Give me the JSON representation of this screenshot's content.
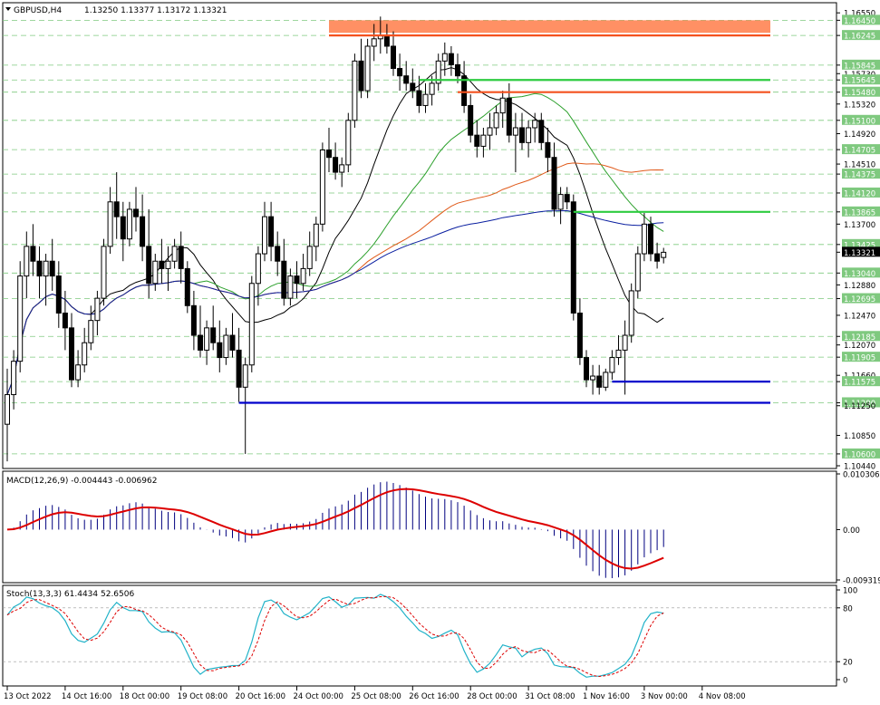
{
  "header": {
    "symbol": "GBPUSD,H4",
    "ohlc": "1.13250 1.13377 1.13172 1.13321"
  },
  "colors": {
    "bull": "#000000",
    "bear": "#000000",
    "grid": "#7fc97f",
    "ma_fast": "#000000",
    "ma_mid": "#2ca02c",
    "ma_slow": "#e05a1a",
    "ma_long": "#0a1fa0",
    "level_red": "#f4511e",
    "level_green": "#2ecc40",
    "level_blue": "#0000cc",
    "resist_zone": "#ff8a5c",
    "macd_hist": "#00007f",
    "macd_signal": "#dd0000",
    "stoch_main": "#20b2c8",
    "stoch_signal": "#dd0000"
  },
  "price_axis": {
    "labels": [
      {
        "v": 1.1655,
        "t": "1.16550",
        "hl": false
      },
      {
        "v": 1.1645,
        "t": "1.16450",
        "hl": true
      },
      {
        "v": 1.16245,
        "t": "1.16245",
        "hl": true
      },
      {
        "v": 1.15845,
        "t": "1.15845",
        "hl": true
      },
      {
        "v": 1.1573,
        "t": "1.15730",
        "hl": false
      },
      {
        "v": 1.15645,
        "t": "1.15645",
        "hl": true
      },
      {
        "v": 1.1548,
        "t": "1.15480",
        "hl": true
      },
      {
        "v": 1.1532,
        "t": "1.15320",
        "hl": false
      },
      {
        "v": 1.151,
        "t": "1.15100",
        "hl": true
      },
      {
        "v": 1.1492,
        "t": "1.14920",
        "hl": false
      },
      {
        "v": 1.14705,
        "t": "1.14705",
        "hl": true
      },
      {
        "v": 1.1451,
        "t": "1.14510",
        "hl": false
      },
      {
        "v": 1.14375,
        "t": "1.14375",
        "hl": true
      },
      {
        "v": 1.1412,
        "t": "1.14120",
        "hl": true
      },
      {
        "v": 1.13865,
        "t": "1.13865",
        "hl": true
      },
      {
        "v": 1.137,
        "t": "1.13700",
        "hl": false
      },
      {
        "v": 1.13425,
        "t": "1.13425",
        "hl": true
      },
      {
        "v": 1.13321,
        "t": "1.13321",
        "hl": "current"
      },
      {
        "v": 1.1304,
        "t": "1.13040",
        "hl": true
      },
      {
        "v": 1.1288,
        "t": "1.12880",
        "hl": false
      },
      {
        "v": 1.12695,
        "t": "1.12695",
        "hl": true
      },
      {
        "v": 1.1247,
        "t": "1.12470",
        "hl": false
      },
      {
        "v": 1.12185,
        "t": "1.12185",
        "hl": true
      },
      {
        "v": 1.1207,
        "t": "1.12070",
        "hl": false
      },
      {
        "v": 1.11905,
        "t": "1.11905",
        "hl": true
      },
      {
        "v": 1.1166,
        "t": "1.11660",
        "hl": false
      },
      {
        "v": 1.11575,
        "t": "1.11575",
        "hl": true
      },
      {
        "v": 1.1129,
        "t": "1.11290",
        "hl": true
      },
      {
        "v": 1.1125,
        "t": "1.11250",
        "hl": false
      },
      {
        "v": 1.1085,
        "t": "1.10850",
        "hl": false
      },
      {
        "v": 1.106,
        "t": "1.10600",
        "hl": true
      },
      {
        "v": 1.1044,
        "t": "1.10440",
        "hl": false
      }
    ]
  },
  "time_axis": {
    "labels": [
      {
        "i": 0,
        "t": "13 Oct 2022"
      },
      {
        "i": 9,
        "t": "14 Oct 16:00"
      },
      {
        "i": 18,
        "t": "18 Oct 00:00"
      },
      {
        "i": 27,
        "t": "19 Oct 08:00"
      },
      {
        "i": 36,
        "t": "20 Oct 16:00"
      },
      {
        "i": 45,
        "t": "24 Oct 00:00"
      },
      {
        "i": 54,
        "t": "25 Oct 08:00"
      },
      {
        "i": 63,
        "t": "26 Oct 16:00"
      },
      {
        "i": 72,
        "t": "28 Oct 00:00"
      },
      {
        "i": 81,
        "t": "31 Oct 08:00"
      },
      {
        "i": 90,
        "t": "1 Nov 16:00"
      },
      {
        "i": 99,
        "t": "3 Nov 00:00"
      },
      {
        "i": 108,
        "t": "4 Nov 08:00"
      }
    ]
  },
  "macd": {
    "label": "MACD(12,26,9) -0.004443 -0.006962",
    "axis": [
      {
        "v": 0.010306,
        "t": "0.010306"
      },
      {
        "v": 0.0,
        "t": "0.00"
      },
      {
        "v": -0.009319,
        "t": "-0.009319"
      }
    ]
  },
  "stoch": {
    "label": "Stoch(13,3,3) 61.4434 52.6506",
    "axis": [
      {
        "v": 100,
        "t": "100"
      },
      {
        "v": 80,
        "t": "80"
      },
      {
        "v": 20,
        "t": "20"
      },
      {
        "v": 0,
        "t": "0"
      }
    ]
  },
  "chart_data": {
    "type": "candlestick",
    "symbol": "GBPUSD",
    "timeframe": "H4",
    "ylim": [
      1.1044,
      1.1665
    ],
    "candles": [
      [
        1.11,
        1.1175,
        1.105,
        1.114
      ],
      [
        1.114,
        1.12,
        1.112,
        1.1185
      ],
      [
        1.1185,
        1.132,
        1.117,
        1.13
      ],
      [
        1.13,
        1.136,
        1.127,
        1.134
      ],
      [
        1.134,
        1.137,
        1.13,
        1.132
      ],
      [
        1.132,
        1.134,
        1.127,
        1.13
      ],
      [
        1.13,
        1.133,
        1.126,
        1.132
      ],
      [
        1.132,
        1.135,
        1.128,
        1.13
      ],
      [
        1.13,
        1.132,
        1.123,
        1.125
      ],
      [
        1.125,
        1.128,
        1.12,
        1.123
      ],
      [
        1.123,
        1.125,
        1.115,
        1.116
      ],
      [
        1.116,
        1.12,
        1.115,
        1.118
      ],
      [
        1.118,
        1.123,
        1.117,
        1.121
      ],
      [
        1.121,
        1.126,
        1.12,
        1.124
      ],
      [
        1.124,
        1.128,
        1.122,
        1.127
      ],
      [
        1.127,
        1.135,
        1.126,
        1.134
      ],
      [
        1.134,
        1.142,
        1.133,
        1.14
      ],
      [
        1.14,
        1.144,
        1.135,
        1.138
      ],
      [
        1.138,
        1.14,
        1.132,
        1.135
      ],
      [
        1.135,
        1.14,
        1.134,
        1.139
      ],
      [
        1.139,
        1.142,
        1.136,
        1.138
      ],
      [
        1.138,
        1.141,
        1.132,
        1.134
      ],
      [
        1.134,
        1.139,
        1.127,
        1.129
      ],
      [
        1.129,
        1.133,
        1.128,
        1.132
      ],
      [
        1.132,
        1.135,
        1.129,
        1.131
      ],
      [
        1.131,
        1.134,
        1.128,
        1.132
      ],
      [
        1.132,
        1.135,
        1.131,
        1.134
      ],
      [
        1.134,
        1.136,
        1.129,
        1.131
      ],
      [
        1.131,
        1.132,
        1.125,
        1.126
      ],
      [
        1.126,
        1.128,
        1.12,
        1.122
      ],
      [
        1.122,
        1.126,
        1.119,
        1.12
      ],
      [
        1.12,
        1.124,
        1.118,
        1.123
      ],
      [
        1.123,
        1.126,
        1.12,
        1.121
      ],
      [
        1.121,
        1.124,
        1.117,
        1.119
      ],
      [
        1.119,
        1.123,
        1.118,
        1.122
      ],
      [
        1.122,
        1.125,
        1.119,
        1.12
      ],
      [
        1.12,
        1.123,
        1.113,
        1.115
      ],
      [
        1.115,
        1.119,
        1.106,
        1.118
      ],
      [
        1.118,
        1.13,
        1.117,
        1.129
      ],
      [
        1.129,
        1.134,
        1.126,
        1.133
      ],
      [
        1.133,
        1.14,
        1.132,
        1.138
      ],
      [
        1.138,
        1.14,
        1.132,
        1.134
      ],
      [
        1.134,
        1.136,
        1.13,
        1.132
      ],
      [
        1.132,
        1.135,
        1.126,
        1.127
      ],
      [
        1.127,
        1.131,
        1.126,
        1.13
      ],
      [
        1.13,
        1.132,
        1.127,
        1.129
      ],
      [
        1.129,
        1.133,
        1.128,
        1.131
      ],
      [
        1.131,
        1.136,
        1.13,
        1.134
      ],
      [
        1.134,
        1.138,
        1.132,
        1.137
      ],
      [
        1.137,
        1.148,
        1.136,
        1.147
      ],
      [
        1.147,
        1.15,
        1.144,
        1.146
      ],
      [
        1.146,
        1.148,
        1.143,
        1.144
      ],
      [
        1.144,
        1.146,
        1.142,
        1.145
      ],
      [
        1.145,
        1.152,
        1.144,
        1.151
      ],
      [
        1.151,
        1.16,
        1.15,
        1.159
      ],
      [
        1.159,
        1.162,
        1.154,
        1.155
      ],
      [
        1.155,
        1.162,
        1.154,
        1.161
      ],
      [
        1.161,
        1.164,
        1.159,
        1.162
      ],
      [
        1.162,
        1.165,
        1.16,
        1.1625
      ],
      [
        1.1625,
        1.164,
        1.16,
        1.161
      ],
      [
        1.161,
        1.163,
        1.157,
        1.158
      ],
      [
        1.158,
        1.16,
        1.155,
        1.157
      ],
      [
        1.157,
        1.159,
        1.155,
        1.156
      ],
      [
        1.156,
        1.158,
        1.154,
        1.155
      ],
      [
        1.155,
        1.157,
        1.152,
        1.153
      ],
      [
        1.153,
        1.156,
        1.152,
        1.1545
      ],
      [
        1.1545,
        1.157,
        1.153,
        1.156
      ],
      [
        1.156,
        1.16,
        1.155,
        1.159
      ],
      [
        1.159,
        1.1615,
        1.157,
        1.16
      ],
      [
        1.16,
        1.161,
        1.157,
        1.1585
      ],
      [
        1.1585,
        1.16,
        1.156,
        1.157
      ],
      [
        1.157,
        1.159,
        1.152,
        1.153
      ],
      [
        1.153,
        1.1545,
        1.148,
        1.149
      ],
      [
        1.149,
        1.151,
        1.146,
        1.1475
      ],
      [
        1.1475,
        1.15,
        1.146,
        1.149
      ],
      [
        1.149,
        1.152,
        1.147,
        1.15
      ],
      [
        1.15,
        1.153,
        1.149,
        1.152
      ],
      [
        1.152,
        1.155,
        1.15,
        1.154
      ],
      [
        1.154,
        1.156,
        1.148,
        1.149
      ],
      [
        1.149,
        1.152,
        1.144,
        1.15
      ],
      [
        1.15,
        1.152,
        1.147,
        1.148
      ],
      [
        1.148,
        1.151,
        1.146,
        1.15
      ],
      [
        1.15,
        1.152,
        1.148,
        1.151
      ],
      [
        1.151,
        1.152,
        1.147,
        1.148
      ],
      [
        1.148,
        1.15,
        1.144,
        1.146
      ],
      [
        1.146,
        1.148,
        1.138,
        1.139
      ],
      [
        1.139,
        1.142,
        1.137,
        1.141
      ],
      [
        1.141,
        1.142,
        1.139,
        1.14
      ],
      [
        1.14,
        1.141,
        1.124,
        1.125
      ],
      [
        1.125,
        1.127,
        1.118,
        1.119
      ],
      [
        1.119,
        1.12,
        1.115,
        1.116
      ],
      [
        1.116,
        1.118,
        1.114,
        1.1165
      ],
      [
        1.1165,
        1.118,
        1.114,
        1.115
      ],
      [
        1.115,
        1.1175,
        1.1145,
        1.117
      ],
      [
        1.117,
        1.12,
        1.116,
        1.119
      ],
      [
        1.119,
        1.122,
        1.118,
        1.12
      ],
      [
        1.12,
        1.124,
        1.114,
        1.122
      ],
      [
        1.122,
        1.129,
        1.121,
        1.128
      ],
      [
        1.128,
        1.134,
        1.127,
        1.133
      ],
      [
        1.133,
        1.1385,
        1.132,
        1.137
      ],
      [
        1.137,
        1.138,
        1.132,
        1.133
      ],
      [
        1.133,
        1.1345,
        1.131,
        1.132
      ],
      [
        1.1325,
        1.1338,
        1.1317,
        1.1332
      ]
    ],
    "horizontal_levels": [
      {
        "v": 1.16245,
        "color": "level_red",
        "from": 50
      },
      {
        "v": 1.15645,
        "color": "level_green",
        "from": 64
      },
      {
        "v": 1.1548,
        "color": "level_red",
        "from": 70
      },
      {
        "v": 1.13865,
        "color": "level_green",
        "from": 88
      },
      {
        "v": 1.11575,
        "color": "level_blue",
        "from": 94
      },
      {
        "v": 1.1129,
        "color": "level_blue",
        "from": 36
      }
    ],
    "resistance_zone": {
      "from_index": 50,
      "v_top": 1.1645,
      "v_bottom": 1.1628
    }
  }
}
